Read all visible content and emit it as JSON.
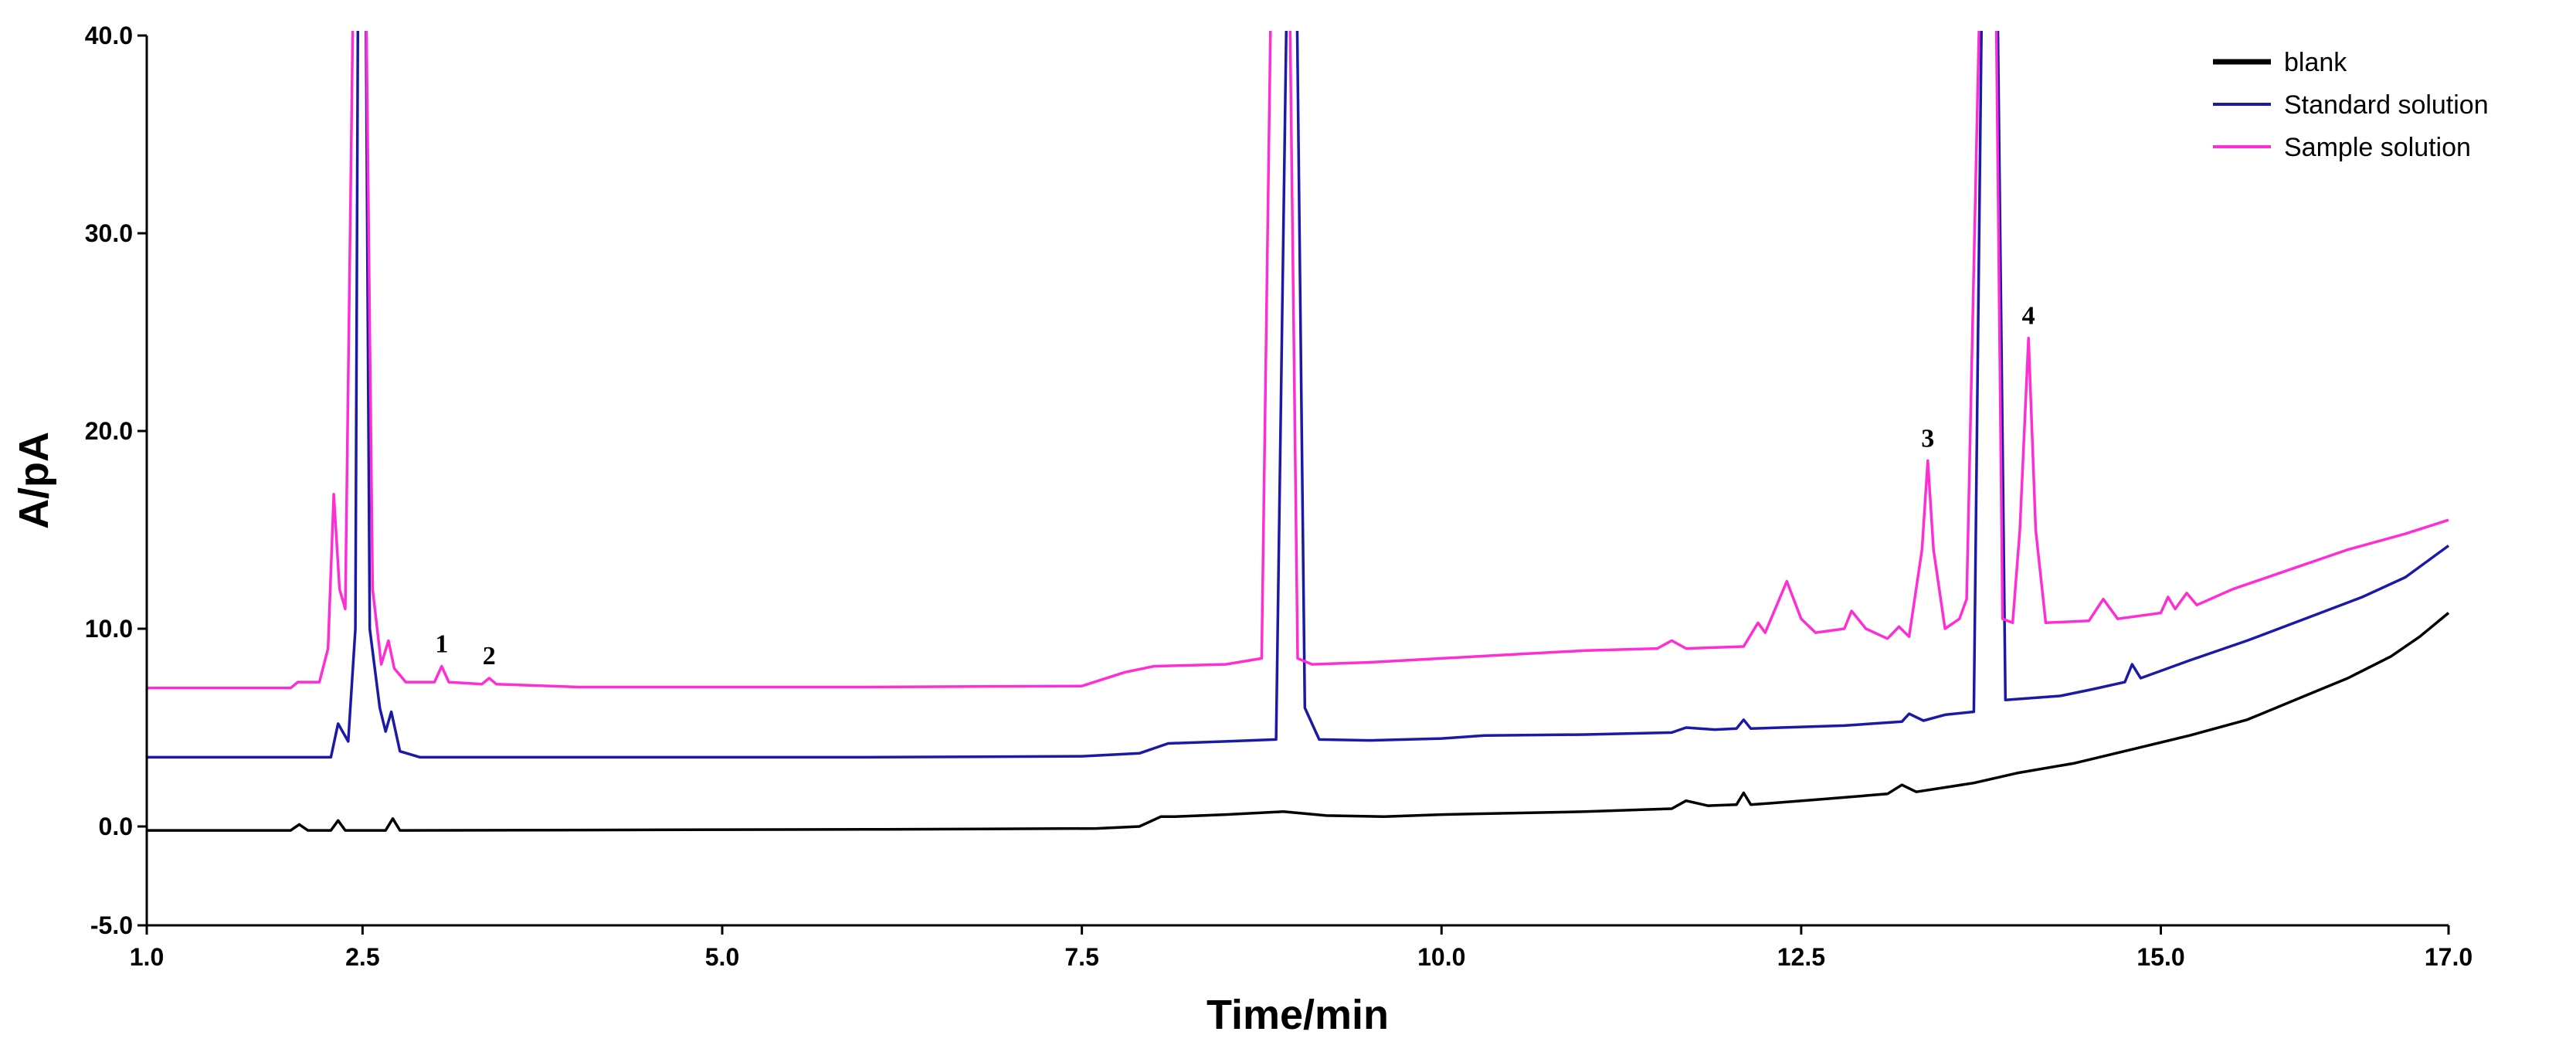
{
  "chart_data": {
    "type": "line",
    "xlabel": "Time/min",
    "ylabel": "A/pA",
    "xlim": [
      1.0,
      17.0
    ],
    "ylim": [
      -5.0,
      40.0
    ],
    "x_ticks": [
      1.0,
      2.5,
      5.0,
      7.5,
      10.0,
      12.5,
      15.0,
      17.0
    ],
    "x_tick_labels": [
      "1.0",
      "2.5",
      "5.0",
      "7.5",
      "10.0",
      "12.5",
      "15.0",
      "17.0"
    ],
    "y_ticks": [
      -5.0,
      0.0,
      10.0,
      20.0,
      30.0,
      40.0
    ],
    "y_tick_labels": [
      "-5.0",
      "0.0",
      "10.0",
      "20.0",
      "30.0",
      "40.0"
    ],
    "legend_position": "top-right",
    "series": [
      {
        "name": "blank",
        "color": "#000000",
        "points": [
          [
            1.0,
            -0.2
          ],
          [
            2.0,
            -0.2
          ],
          [
            2.06,
            0.1
          ],
          [
            2.12,
            -0.2
          ],
          [
            2.28,
            -0.2
          ],
          [
            2.33,
            0.3
          ],
          [
            2.38,
            -0.2
          ],
          [
            2.66,
            -0.2
          ],
          [
            2.71,
            0.4
          ],
          [
            2.76,
            -0.2
          ],
          [
            6.0,
            -0.15
          ],
          [
            7.6,
            -0.1
          ],
          [
            7.9,
            0.0
          ],
          [
            8.05,
            0.5
          ],
          [
            8.15,
            0.5
          ],
          [
            8.5,
            0.6
          ],
          [
            8.9,
            0.75
          ],
          [
            9.2,
            0.55
          ],
          [
            9.6,
            0.5
          ],
          [
            10.0,
            0.6
          ],
          [
            11.0,
            0.75
          ],
          [
            11.6,
            0.9
          ],
          [
            11.7,
            1.3
          ],
          [
            11.85,
            1.05
          ],
          [
            12.05,
            1.1
          ],
          [
            12.1,
            1.7
          ],
          [
            12.15,
            1.1
          ],
          [
            12.6,
            1.35
          ],
          [
            13.1,
            1.65
          ],
          [
            13.2,
            2.1
          ],
          [
            13.3,
            1.75
          ],
          [
            13.7,
            2.2
          ],
          [
            14.0,
            2.7
          ],
          [
            14.4,
            3.2
          ],
          [
            14.8,
            3.9
          ],
          [
            15.2,
            4.6
          ],
          [
            15.6,
            5.4
          ],
          [
            16.0,
            6.6
          ],
          [
            16.3,
            7.5
          ],
          [
            16.6,
            8.6
          ],
          [
            16.8,
            9.6
          ],
          [
            17.0,
            10.8
          ]
        ]
      },
      {
        "name": "Standard solution",
        "color": "#1a1aa6",
        "points": [
          [
            1.0,
            3.5
          ],
          [
            2.28,
            3.5
          ],
          [
            2.33,
            5.2
          ],
          [
            2.4,
            4.3
          ],
          [
            2.45,
            10.0
          ],
          [
            2.47,
            45.0
          ],
          [
            2.52,
            45.0
          ],
          [
            2.55,
            10.0
          ],
          [
            2.62,
            6.0
          ],
          [
            2.66,
            4.8
          ],
          [
            2.7,
            5.8
          ],
          [
            2.76,
            3.8
          ],
          [
            2.9,
            3.5
          ],
          [
            6.0,
            3.5
          ],
          [
            7.5,
            3.55
          ],
          [
            7.9,
            3.7
          ],
          [
            8.1,
            4.2
          ],
          [
            8.5,
            4.3
          ],
          [
            8.85,
            4.4
          ],
          [
            8.93,
            45.0
          ],
          [
            8.99,
            45.0
          ],
          [
            9.05,
            6.0
          ],
          [
            9.15,
            4.4
          ],
          [
            9.5,
            4.35
          ],
          [
            10.0,
            4.45
          ],
          [
            10.3,
            4.6
          ],
          [
            11.0,
            4.65
          ],
          [
            11.6,
            4.75
          ],
          [
            11.7,
            5.0
          ],
          [
            11.9,
            4.9
          ],
          [
            12.05,
            4.95
          ],
          [
            12.1,
            5.4
          ],
          [
            12.15,
            4.95
          ],
          [
            12.8,
            5.1
          ],
          [
            13.2,
            5.3
          ],
          [
            13.25,
            5.7
          ],
          [
            13.35,
            5.35
          ],
          [
            13.5,
            5.65
          ],
          [
            13.7,
            5.8
          ],
          [
            13.76,
            45.0
          ],
          [
            13.86,
            45.0
          ],
          [
            13.92,
            6.4
          ],
          [
            14.3,
            6.6
          ],
          [
            14.5,
            6.9
          ],
          [
            14.75,
            7.3
          ],
          [
            14.8,
            8.2
          ],
          [
            14.86,
            7.5
          ],
          [
            15.2,
            8.4
          ],
          [
            15.6,
            9.4
          ],
          [
            16.0,
            10.5
          ],
          [
            16.4,
            11.6
          ],
          [
            16.7,
            12.6
          ],
          [
            17.0,
            14.2
          ]
        ]
      },
      {
        "name": "Sample solution",
        "color": "#ff2dd4",
        "points": [
          [
            1.0,
            7.0
          ],
          [
            2.0,
            7.0
          ],
          [
            2.05,
            7.3
          ],
          [
            2.2,
            7.3
          ],
          [
            2.26,
            9.0
          ],
          [
            2.3,
            16.8
          ],
          [
            2.34,
            12.0
          ],
          [
            2.38,
            11.0
          ],
          [
            2.44,
            45.0
          ],
          [
            2.52,
            45.0
          ],
          [
            2.57,
            12.0
          ],
          [
            2.63,
            8.2
          ],
          [
            2.68,
            9.4
          ],
          [
            2.72,
            8.0
          ],
          [
            2.8,
            7.3
          ],
          [
            3.0,
            7.3
          ],
          [
            3.05,
            8.1
          ],
          [
            3.1,
            7.3
          ],
          [
            3.33,
            7.2
          ],
          [
            3.38,
            7.5
          ],
          [
            3.43,
            7.2
          ],
          [
            4.0,
            7.05
          ],
          [
            6.0,
            7.05
          ],
          [
            7.5,
            7.1
          ],
          [
            7.8,
            7.8
          ],
          [
            8.0,
            8.1
          ],
          [
            8.5,
            8.2
          ],
          [
            8.75,
            8.5
          ],
          [
            8.82,
            45.0
          ],
          [
            8.94,
            45.0
          ],
          [
            9.0,
            8.5
          ],
          [
            9.1,
            8.2
          ],
          [
            9.5,
            8.3
          ],
          [
            10.0,
            8.5
          ],
          [
            10.5,
            8.7
          ],
          [
            11.0,
            8.9
          ],
          [
            11.5,
            9.0
          ],
          [
            11.6,
            9.4
          ],
          [
            11.7,
            9.0
          ],
          [
            12.1,
            9.1
          ],
          [
            12.2,
            10.3
          ],
          [
            12.25,
            9.8
          ],
          [
            12.4,
            12.4
          ],
          [
            12.5,
            10.5
          ],
          [
            12.6,
            9.8
          ],
          [
            12.8,
            10.0
          ],
          [
            12.85,
            10.9
          ],
          [
            12.95,
            10.0
          ],
          [
            13.1,
            9.5
          ],
          [
            13.18,
            10.1
          ],
          [
            13.25,
            9.6
          ],
          [
            13.34,
            14.0
          ],
          [
            13.38,
            18.5
          ],
          [
            13.42,
            14.0
          ],
          [
            13.5,
            10.0
          ],
          [
            13.6,
            10.5
          ],
          [
            13.65,
            11.5
          ],
          [
            13.75,
            45.0
          ],
          [
            13.85,
            45.0
          ],
          [
            13.9,
            10.5
          ],
          [
            13.97,
            10.3
          ],
          [
            14.02,
            15.0
          ],
          [
            14.08,
            24.7
          ],
          [
            14.13,
            15.0
          ],
          [
            14.2,
            10.3
          ],
          [
            14.5,
            10.4
          ],
          [
            14.6,
            11.5
          ],
          [
            14.7,
            10.5
          ],
          [
            15.0,
            10.8
          ],
          [
            15.05,
            11.6
          ],
          [
            15.1,
            11.0
          ],
          [
            15.18,
            11.8
          ],
          [
            15.25,
            11.2
          ],
          [
            15.5,
            12.0
          ],
          [
            15.9,
            13.0
          ],
          [
            16.3,
            14.0
          ],
          [
            16.7,
            14.8
          ],
          [
            17.0,
            15.5
          ]
        ]
      }
    ],
    "annotations": [
      {
        "text": "1",
        "x": 3.05,
        "y": 8.1
      },
      {
        "text": "2",
        "x": 3.38,
        "y": 7.5
      },
      {
        "text": "3",
        "x": 13.38,
        "y": 18.5
      },
      {
        "text": "4",
        "x": 14.08,
        "y": 24.7
      }
    ]
  }
}
